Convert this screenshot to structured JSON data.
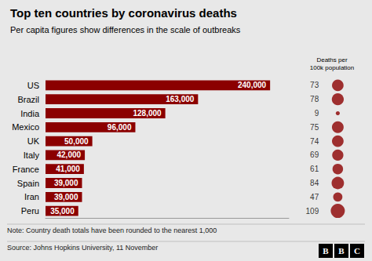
{
  "chart_data": {
    "type": "bar",
    "orientation": "horizontal",
    "title": "Top ten countries by coronavirus deaths",
    "subtitle": "Per capita figures show differences in the scale of outbreaks",
    "note": "Note: Country death totals have been rounded to the nearest 1,000",
    "source": "Source: Johns Hopkins University, 11 November",
    "logo": "BBC",
    "categories": [
      "US",
      "Brazil",
      "India",
      "Mexico",
      "UK",
      "Italy",
      "France",
      "Spain",
      "Iran",
      "Peru"
    ],
    "values": [
      240000,
      163000,
      128000,
      96000,
      50000,
      42000,
      41000,
      39000,
      39000,
      35000
    ],
    "value_labels": [
      "240,000",
      "163,000",
      "128,000",
      "96,000",
      "50,000",
      "42,000",
      "41,000",
      "39,000",
      "39,000",
      "35,000"
    ],
    "color": "#8B0000",
    "data_labels": true,
    "xlim": [
      0,
      260000
    ],
    "tick_labels": "y",
    "grid": false,
    "per_capita": {
      "label": "Deaths per\n100k population",
      "values": [
        73,
        78,
        9,
        75,
        74,
        69,
        61,
        84,
        47,
        109
      ],
      "color": "#8B0000"
    }
  }
}
